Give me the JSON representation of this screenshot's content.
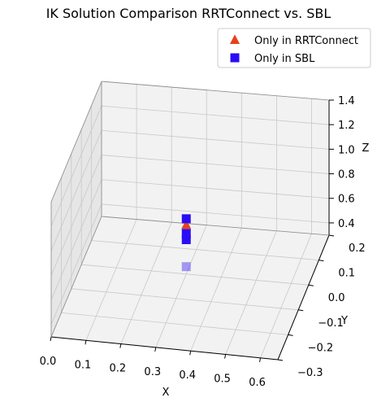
{
  "chart_data": {
    "type": "scatter",
    "title": "IK Solution Comparison RRTConnect vs. SBL",
    "xlabel": "X",
    "ylabel": "Y",
    "zlabel": "Z",
    "xlim": [
      0.0,
      0.65
    ],
    "ylim": [
      -0.3,
      0.2
    ],
    "zlim": [
      0.3,
      1.4
    ],
    "grid": true,
    "legend_position": "top-right",
    "x_ticks": [
      "0.0",
      "0.1",
      "0.2",
      "0.3",
      "0.4",
      "0.5",
      "0.6"
    ],
    "y_ticks": [
      "0.2",
      "0.1",
      "0.0",
      "−0.1",
      "−0.2",
      "−0.3"
    ],
    "z_ticks": [
      "0.4",
      "0.6",
      "0.8",
      "1.0",
      "1.2",
      "1.4"
    ],
    "series": [
      {
        "name": "Only in RRTConnect",
        "marker": "triangle",
        "color": "#e8401c",
        "points": [
          {
            "x": 0.3,
            "y": 0.0,
            "z": 0.7
          }
        ]
      },
      {
        "name": "Only in SBL",
        "marker": "square",
        "color": "#2a0cf5",
        "points": [
          {
            "x": 0.3,
            "y": 0.0,
            "z": 0.75
          },
          {
            "x": 0.3,
            "y": 0.0,
            "z": 0.63
          },
          {
            "x": 0.3,
            "y": 0.0,
            "z": 0.58
          },
          {
            "x": 0.3,
            "y": 0.0,
            "z": 0.36
          }
        ]
      }
    ]
  }
}
